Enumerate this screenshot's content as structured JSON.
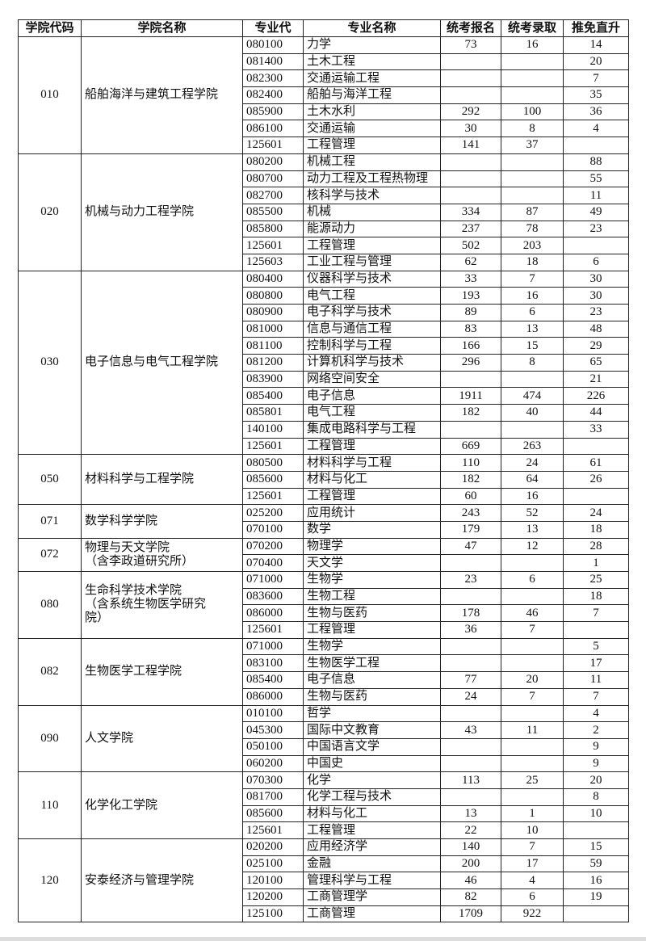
{
  "header": [
    "学院代码",
    "学院名称",
    "专业代",
    "专业名称",
    "统考报名",
    "统考录取",
    "推免直升"
  ],
  "groups": [
    {
      "code": "010",
      "name": [
        "船舶海洋与建筑工程学院"
      ],
      "rows": [
        [
          "080100",
          "力学",
          73,
          16,
          14
        ],
        [
          "081400",
          "土木工程",
          null,
          null,
          20
        ],
        [
          "082300",
          "交通运输工程",
          null,
          null,
          7
        ],
        [
          "082400",
          "船舶与海洋工程",
          null,
          null,
          35
        ],
        [
          "085900",
          "土木水利",
          292,
          100,
          36
        ],
        [
          "086100",
          "交通运输",
          30,
          8,
          4
        ],
        [
          "125601",
          "工程管理",
          141,
          37,
          null
        ]
      ]
    },
    {
      "code": "020",
      "name": [
        "机械与动力工程学院"
      ],
      "rows": [
        [
          "080200",
          "机械工程",
          null,
          null,
          88
        ],
        [
          "080700",
          "动力工程及工程热物理",
          null,
          null,
          55
        ],
        [
          "082700",
          "核科学与技术",
          null,
          null,
          11
        ],
        [
          "085500",
          "机械",
          334,
          87,
          49
        ],
        [
          "085800",
          "能源动力",
          237,
          78,
          23
        ],
        [
          "125601",
          "工程管理",
          502,
          203,
          null
        ],
        [
          "125603",
          "工业工程与管理",
          62,
          18,
          6
        ]
      ]
    },
    {
      "code": "030",
      "name": [
        "电子信息与电气工程学院"
      ],
      "rows": [
        [
          "080400",
          "仪器科学与技术",
          33,
          7,
          30
        ],
        [
          "080800",
          "电气工程",
          193,
          16,
          30
        ],
        [
          "080900",
          "电子科学与技术",
          89,
          6,
          23
        ],
        [
          "081000",
          "信息与通信工程",
          83,
          13,
          48
        ],
        [
          "081100",
          "控制科学与工程",
          166,
          15,
          29
        ],
        [
          "081200",
          "计算机科学与技术",
          296,
          8,
          65
        ],
        [
          "083900",
          "网络空间安全",
          null,
          null,
          21
        ],
        [
          "085400",
          "电子信息",
          1911,
          474,
          226
        ],
        [
          "085801",
          "电气工程",
          182,
          40,
          44
        ],
        [
          "140100",
          "集成电路科学与工程",
          null,
          null,
          33
        ],
        [
          "125601",
          "工程管理",
          669,
          263,
          null
        ]
      ]
    },
    {
      "code": "050",
      "name": [
        "材料科学与工程学院"
      ],
      "rows": [
        [
          "080500",
          "材料科学与工程",
          110,
          24,
          61
        ],
        [
          "085600",
          "材料与化工",
          182,
          64,
          26
        ],
        [
          "125601",
          "工程管理",
          60,
          16,
          null
        ]
      ]
    },
    {
      "code": "071",
      "name": [
        "数学科学学院"
      ],
      "rows": [
        [
          "025200",
          "应用统计",
          243,
          52,
          24
        ],
        [
          "070100",
          "数学",
          179,
          13,
          18
        ]
      ]
    },
    {
      "code": "072",
      "name": [
        "物理与天文学院",
        "（含李政道研究所）"
      ],
      "rows": [
        [
          "070200",
          "物理学",
          47,
          12,
          28
        ],
        [
          "070400",
          "天文学",
          null,
          null,
          1
        ]
      ]
    },
    {
      "code": "080",
      "name": [
        "生命科学技术学院",
        "（含系统生物医学研究",
        "院）"
      ],
      "rows": [
        [
          "071000",
          "生物学",
          23,
          6,
          25
        ],
        [
          "083600",
          "生物工程",
          null,
          null,
          18
        ],
        [
          "086000",
          "生物与医药",
          178,
          46,
          7
        ],
        [
          "125601",
          "工程管理",
          36,
          7,
          null
        ]
      ]
    },
    {
      "code": "082",
      "name": [
        "生物医学工程学院"
      ],
      "rows": [
        [
          "071000",
          "生物学",
          null,
          null,
          5
        ],
        [
          "083100",
          "生物医学工程",
          null,
          null,
          17
        ],
        [
          "085400",
          "电子信息",
          77,
          20,
          11
        ],
        [
          "086000",
          "生物与医药",
          24,
          7,
          7
        ]
      ]
    },
    {
      "code": "090",
      "name": [
        "人文学院"
      ],
      "rows": [
        [
          "010100",
          "哲学",
          null,
          null,
          4
        ],
        [
          "045300",
          "国际中文教育",
          43,
          11,
          2
        ],
        [
          "050100",
          "中国语言文学",
          null,
          null,
          9
        ],
        [
          "060200",
          "中国史",
          null,
          null,
          9
        ]
      ]
    },
    {
      "code": "110",
      "name": [
        "化学化工学院"
      ],
      "rows": [
        [
          "070300",
          "化学",
          113,
          25,
          20
        ],
        [
          "081700",
          "化学工程与技术",
          null,
          null,
          8
        ],
        [
          "085600",
          "材料与化工",
          13,
          1,
          10
        ],
        [
          "125601",
          "工程管理",
          22,
          10,
          null
        ]
      ]
    },
    {
      "code": "120",
      "name": [
        "安泰经济与管理学院"
      ],
      "rows": [
        [
          "020200",
          "应用经济学",
          140,
          7,
          15
        ],
        [
          "025100",
          "金融",
          200,
          17,
          59
        ],
        [
          "120100",
          "管理科学与工程",
          46,
          4,
          16
        ],
        [
          "120200",
          "工商管理学",
          82,
          6,
          19
        ],
        [
          "125100",
          "工商管理",
          1709,
          922,
          null
        ]
      ]
    }
  ]
}
